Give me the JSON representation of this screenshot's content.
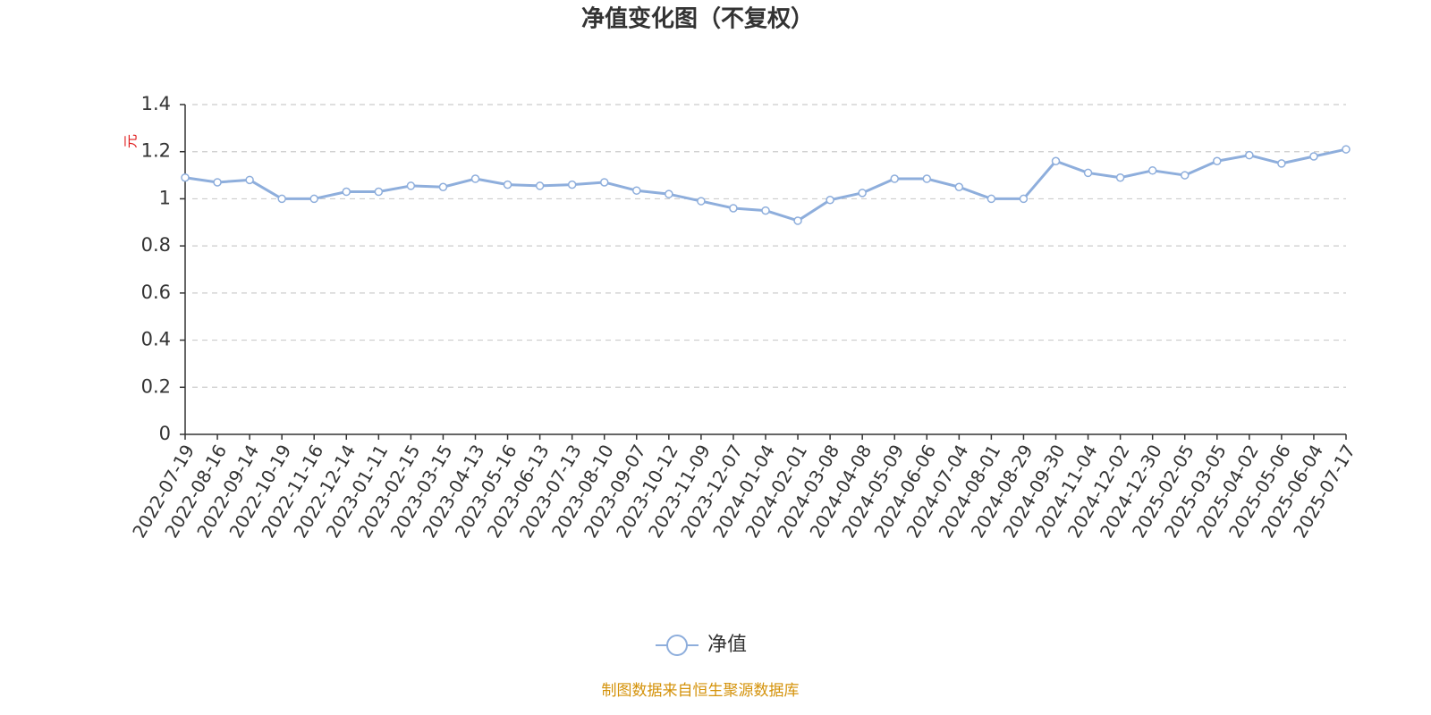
{
  "chart_data": {
    "type": "line",
    "title": "净值变化图（不复权）",
    "y_label": "元",
    "categories": [
      "2022-07-19",
      "2022-08-16",
      "2022-09-14",
      "2022-10-19",
      "2022-11-16",
      "2022-12-14",
      "2023-01-11",
      "2023-02-15",
      "2023-03-15",
      "2023-04-13",
      "2023-05-16",
      "2023-06-13",
      "2023-07-13",
      "2023-08-10",
      "2023-09-07",
      "2023-10-12",
      "2023-11-09",
      "2023-12-07",
      "2024-01-04",
      "2024-02-01",
      "2024-03-08",
      "2024-04-08",
      "2024-05-09",
      "2024-06-06",
      "2024-07-04",
      "2024-08-01",
      "2024-08-29",
      "2024-09-30",
      "2024-11-04",
      "2024-12-02",
      "2024-12-30",
      "2025-02-05",
      "2025-03-05",
      "2025-04-02",
      "2025-05-06",
      "2025-06-04",
      "2025-07-17"
    ],
    "series": [
      {
        "name": "净值",
        "color": "#8eaedc",
        "values": [
          1.09,
          1.07,
          1.08,
          1.0,
          1.0,
          1.03,
          1.03,
          1.055,
          1.05,
          1.085,
          1.06,
          1.055,
          1.06,
          1.07,
          1.035,
          1.02,
          0.99,
          0.96,
          0.95,
          0.907,
          0.995,
          1.025,
          1.085,
          1.085,
          1.05,
          1.0,
          1.0,
          1.16,
          1.11,
          1.09,
          1.12,
          1.1,
          1.16,
          1.185,
          1.15,
          1.18,
          1.21
        ]
      }
    ],
    "ylim": [
      0,
      1.4
    ],
    "yticks": [
      0,
      0.2,
      0.4,
      0.6,
      0.8,
      1,
      1.2,
      1.4
    ],
    "grid": true,
    "source": "制图数据来自恒生聚源数据库"
  }
}
